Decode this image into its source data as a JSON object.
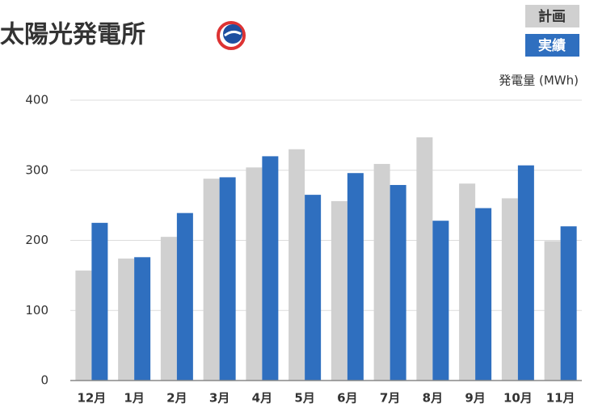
{
  "chart_data": {
    "type": "bar",
    "title": "太陽光発電所",
    "y_label": "発電量 (MWh)",
    "categories": [
      "12月",
      "1月",
      "2月",
      "3月",
      "4月",
      "5月",
      "6月",
      "7月",
      "8月",
      "9月",
      "10月",
      "11月"
    ],
    "series": [
      {
        "name": "計画",
        "color": "#d0d0d0",
        "values": [
          157,
          174,
          205,
          288,
          304,
          330,
          256,
          309,
          347,
          281,
          260,
          199
        ]
      },
      {
        "name": "実績",
        "color": "#2f6fbf",
        "values": [
          225,
          176,
          239,
          290,
          320,
          265,
          296,
          279,
          228,
          246,
          307,
          220
        ]
      }
    ],
    "ylim": [
      0,
      400
    ],
    "yticks": [
      0,
      100,
      200,
      300,
      400
    ],
    "grid": true,
    "legend": "top-right"
  }
}
